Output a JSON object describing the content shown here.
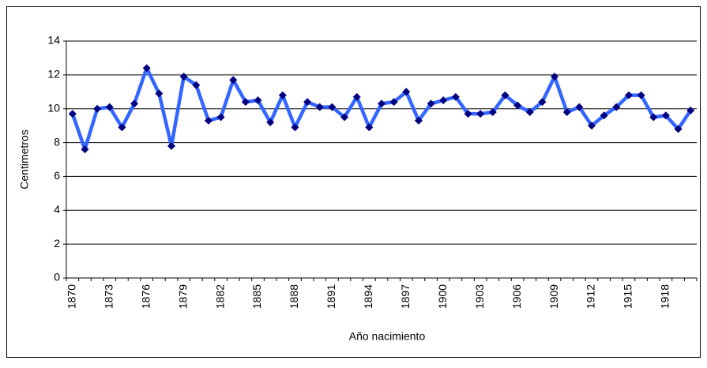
{
  "chart_data": {
    "type": "line",
    "x_label": "Año nacimiento",
    "y_label": "Centimetros",
    "categories": [
      1870,
      null,
      null,
      1873,
      null,
      null,
      1876,
      null,
      null,
      1879,
      null,
      null,
      1882,
      null,
      null,
      1885,
      null,
      null,
      1888,
      null,
      null,
      1891,
      null,
      null,
      1894,
      null,
      null,
      1897,
      null,
      null,
      1900,
      null,
      null,
      1903,
      null,
      null,
      1906,
      null,
      null,
      1909,
      null,
      null,
      1912,
      null,
      null,
      1915,
      null,
      null,
      1918,
      null,
      null
    ],
    "values": [
      9.7,
      7.6,
      10.0,
      10.1,
      8.9,
      10.3,
      12.4,
      10.9,
      7.8,
      11.9,
      11.4,
      9.3,
      9.5,
      11.7,
      10.4,
      10.5,
      9.2,
      10.8,
      8.9,
      10.4,
      10.1,
      10.1,
      9.5,
      10.7,
      8.9,
      10.3,
      10.4,
      11.0,
      9.3,
      10.3,
      10.5,
      10.7,
      9.7,
      9.7,
      9.8,
      10.8,
      10.2,
      9.8,
      10.4,
      11.9,
      9.8,
      10.1,
      9.0,
      9.6,
      10.1,
      10.8,
      10.8,
      9.5,
      9.6,
      8.8,
      9.9
    ],
    "color": "#3366ff",
    "marker_color": "#000080",
    "ylim": [
      0,
      14
    ],
    "yticks": [
      0,
      2,
      4,
      6,
      8,
      10,
      12,
      14
    ],
    "grid": true
  }
}
